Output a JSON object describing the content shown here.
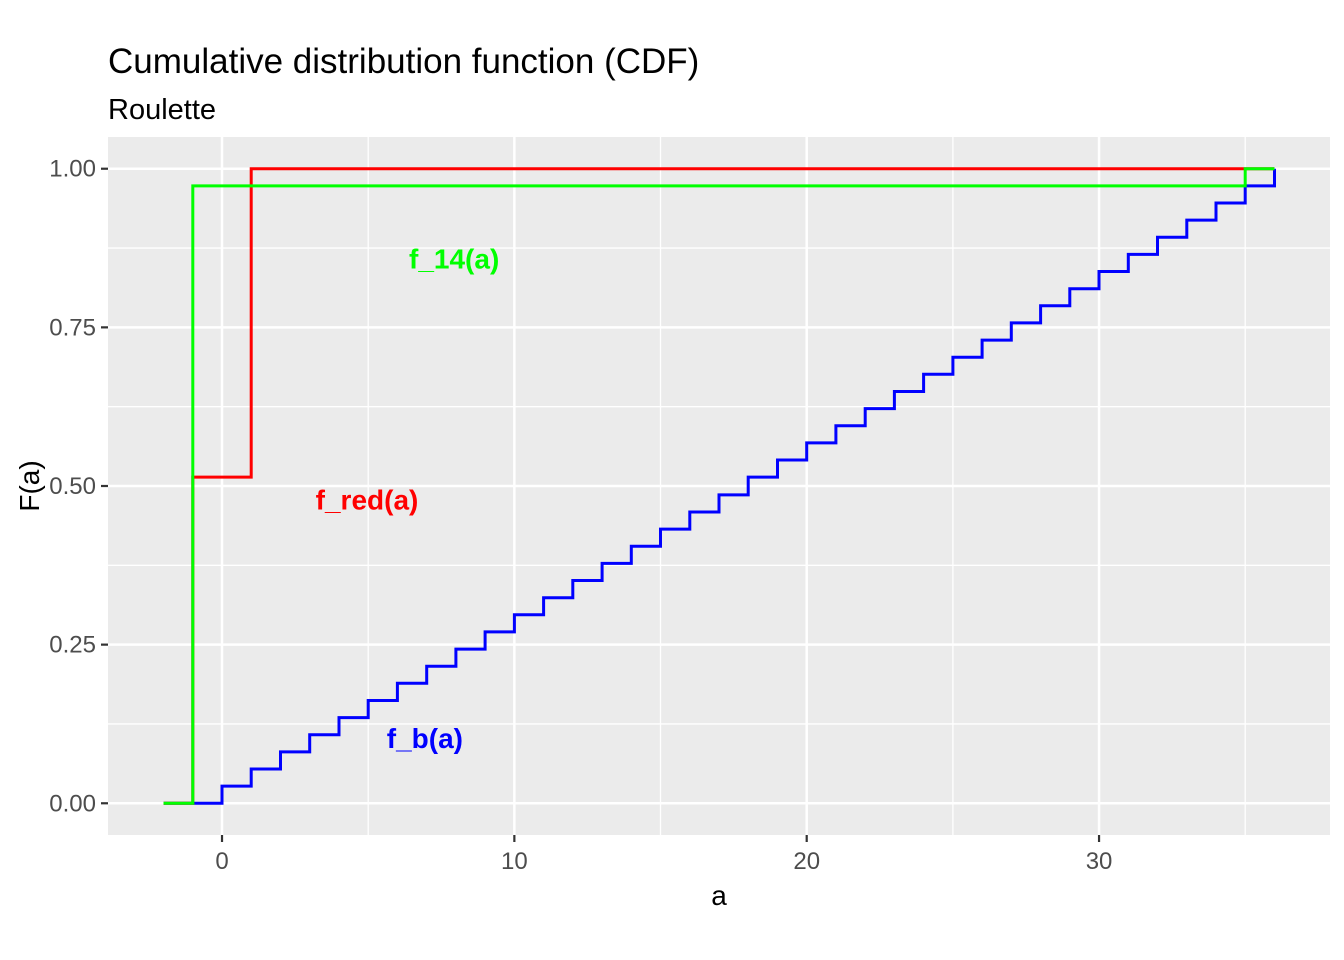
{
  "chart_data": {
    "type": "line",
    "subtype": "step-cdf",
    "title": "Cumulative distribution function (CDF)",
    "subtitle": "Roulette",
    "xlabel": "a",
    "ylabel": "F(a)",
    "xlim": [
      -3.9,
      37.9
    ],
    "ylim": [
      -0.05,
      1.05
    ],
    "grid": "on",
    "panel_bg": "#EBEBEB",
    "grid_color": "#FFFFFF",
    "tick_color": "#333333",
    "tick_label_color": "#4D4D4D",
    "text_color": "#000000",
    "x_major_ticks": [
      {
        "value": 0,
        "label": "0"
      },
      {
        "value": 10,
        "label": "10"
      },
      {
        "value": 20,
        "label": "20"
      },
      {
        "value": 30,
        "label": "30"
      }
    ],
    "x_minor_ticks": [
      5,
      15,
      25,
      35
    ],
    "y_major_ticks": [
      {
        "value": 0.0,
        "label": "0.00"
      },
      {
        "value": 0.25,
        "label": "0.25"
      },
      {
        "value": 0.5,
        "label": "0.50"
      },
      {
        "value": 0.75,
        "label": "0.75"
      },
      {
        "value": 1.0,
        "label": "1.00"
      }
    ],
    "y_minor_ticks": [
      0.125,
      0.375,
      0.625,
      0.875
    ],
    "series": [
      {
        "id": "f_b",
        "name": "f_b(a)",
        "color": "#0000FF",
        "description": "CDF of uniform ball slot b over {0,...,36}, step 1/37 per integer",
        "start_x": -2,
        "start_F": 0,
        "end_x": 36,
        "jumps": [
          {
            "x": 0,
            "F": 0.027
          },
          {
            "x": 1,
            "F": 0.054
          },
          {
            "x": 2,
            "F": 0.081
          },
          {
            "x": 3,
            "F": 0.108
          },
          {
            "x": 4,
            "F": 0.135
          },
          {
            "x": 5,
            "F": 0.162
          },
          {
            "x": 6,
            "F": 0.189
          },
          {
            "x": 7,
            "F": 0.216
          },
          {
            "x": 8,
            "F": 0.243
          },
          {
            "x": 9,
            "F": 0.27
          },
          {
            "x": 10,
            "F": 0.297
          },
          {
            "x": 11,
            "F": 0.324
          },
          {
            "x": 12,
            "F": 0.351
          },
          {
            "x": 13,
            "F": 0.378
          },
          {
            "x": 14,
            "F": 0.405
          },
          {
            "x": 15,
            "F": 0.432
          },
          {
            "x": 16,
            "F": 0.459
          },
          {
            "x": 17,
            "F": 0.486
          },
          {
            "x": 18,
            "F": 0.514
          },
          {
            "x": 19,
            "F": 0.541
          },
          {
            "x": 20,
            "F": 0.568
          },
          {
            "x": 21,
            "F": 0.595
          },
          {
            "x": 22,
            "F": 0.622
          },
          {
            "x": 23,
            "F": 0.649
          },
          {
            "x": 24,
            "F": 0.676
          },
          {
            "x": 25,
            "F": 0.703
          },
          {
            "x": 26,
            "F": 0.73
          },
          {
            "x": 27,
            "F": 0.757
          },
          {
            "x": 28,
            "F": 0.784
          },
          {
            "x": 29,
            "F": 0.811
          },
          {
            "x": 30,
            "F": 0.838
          },
          {
            "x": 31,
            "F": 0.865
          },
          {
            "x": 32,
            "F": 0.892
          },
          {
            "x": 33,
            "F": 0.919
          },
          {
            "x": 34,
            "F": 0.946
          },
          {
            "x": 35,
            "F": 0.973
          },
          {
            "x": 36,
            "F": 1.0
          }
        ],
        "label": {
          "text": "f_b(a)",
          "x": 6.94,
          "F": 0.102
        }
      },
      {
        "id": "f_red",
        "name": "f_red(a)",
        "color": "#FF0000",
        "description": "CDF of winnings betting 1 on red: -1 w.p. 19/37, +1 w.p. 18/37",
        "start_x": -2,
        "start_F": 0,
        "end_x": 36,
        "jumps": [
          {
            "x": -1,
            "F": 0.514
          },
          {
            "x": 1,
            "F": 1.0
          }
        ],
        "label": {
          "text": "f_red(a)",
          "x": 4.96,
          "F": 0.478
        }
      },
      {
        "id": "f_14",
        "name": "f_14(a)",
        "color": "#00FF00",
        "description": "CDF of winnings betting 1 on number 14: -1 w.p. 36/37, +35 w.p. 1/37",
        "start_x": -2,
        "start_F": 0,
        "end_x": 36,
        "jumps": [
          {
            "x": -1,
            "F": 0.973
          },
          {
            "x": 35,
            "F": 1.0
          }
        ],
        "label": {
          "text": "f_14(a)",
          "x": 7.94,
          "F": 0.858
        }
      }
    ]
  }
}
